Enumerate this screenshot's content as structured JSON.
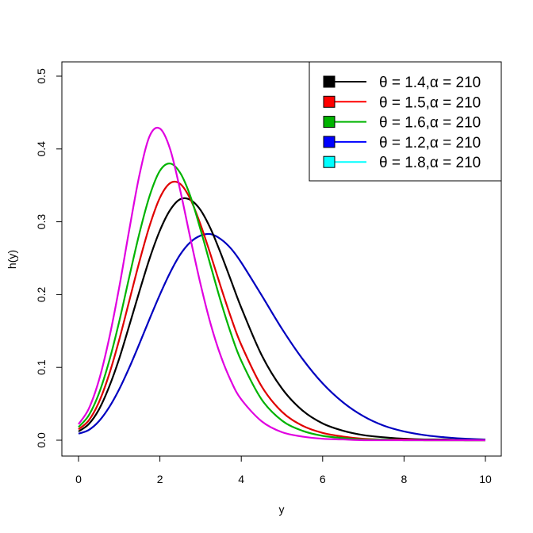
{
  "chart_data": {
    "type": "line",
    "title": "",
    "xlabel": "y",
    "ylabel": "h(y)",
    "xlim": [
      0,
      10
    ],
    "ylim": [
      0,
      0.5
    ],
    "x_ticks": [
      "0",
      "2",
      "4",
      "6",
      "8",
      "10"
    ],
    "y_ticks": [
      "0.0",
      "0.1",
      "0.2",
      "0.3",
      "0.4",
      "0.5"
    ],
    "grid": false,
    "legend_position": "top-right",
    "legend": [
      {
        "label": "θ = 1.4,α = 210",
        "color": "#000000"
      },
      {
        "label": "θ = 1.5,α = 210",
        "color": "#ff0000"
      },
      {
        "label": "θ = 1.6,α = 210",
        "color": "#00b400"
      },
      {
        "label": "θ = 1.2,α = 210",
        "color": "#0000ff"
      },
      {
        "label": "θ = 1.8,α = 210",
        "color": "#00ffff"
      }
    ],
    "series": [
      {
        "color": "#0000c0",
        "x": [
          0,
          0.25,
          0.5,
          0.75,
          1,
          1.25,
          1.5,
          1.75,
          2,
          2.25,
          2.5,
          2.75,
          3,
          3.25,
          3.5,
          3.75,
          4,
          4.5,
          5,
          5.5,
          6,
          6.5,
          7,
          7.5,
          8,
          8.5,
          9,
          9.5,
          10
        ],
        "values": [
          0.009,
          0.014,
          0.026,
          0.045,
          0.07,
          0.1,
          0.133,
          0.167,
          0.2,
          0.23,
          0.255,
          0.272,
          0.281,
          0.283,
          0.276,
          0.263,
          0.244,
          0.199,
          0.153,
          0.112,
          0.078,
          0.052,
          0.033,
          0.02,
          0.012,
          0.007,
          0.004,
          0.002,
          0.001
        ]
      },
      {
        "color": "#000000",
        "x": [
          0,
          0.25,
          0.5,
          0.75,
          1,
          1.25,
          1.5,
          1.75,
          2,
          2.25,
          2.5,
          2.75,
          3,
          3.25,
          3.5,
          3.75,
          4,
          4.5,
          5,
          5.5,
          6,
          6.5,
          7,
          7.5,
          8,
          8.5,
          9,
          9.5,
          10
        ],
        "values": [
          0.012,
          0.022,
          0.042,
          0.073,
          0.112,
          0.158,
          0.205,
          0.25,
          0.288,
          0.316,
          0.331,
          0.33,
          0.316,
          0.29,
          0.256,
          0.219,
          0.182,
          0.117,
          0.071,
          0.041,
          0.023,
          0.013,
          0.007,
          0.004,
          0.002,
          0.001,
          0.001,
          0.0,
          0.0
        ]
      },
      {
        "color": "#e00000",
        "x": [
          0,
          0.25,
          0.5,
          0.75,
          1,
          1.25,
          1.5,
          1.75,
          2,
          2.25,
          2.5,
          2.75,
          3,
          3.25,
          3.5,
          3.75,
          4,
          4.5,
          5,
          5.5,
          6,
          6.5,
          7,
          7.5,
          8,
          8.5,
          9,
          9.5,
          10
        ],
        "values": [
          0.015,
          0.027,
          0.052,
          0.09,
          0.138,
          0.192,
          0.246,
          0.295,
          0.333,
          0.353,
          0.352,
          0.331,
          0.296,
          0.254,
          0.21,
          0.168,
          0.131,
          0.074,
          0.039,
          0.02,
          0.01,
          0.005,
          0.002,
          0.001,
          0.001,
          0.0,
          0.0,
          0.0,
          0.0
        ]
      },
      {
        "color": "#00b400",
        "x": [
          0,
          0.25,
          0.5,
          0.75,
          1,
          1.25,
          1.5,
          1.75,
          2,
          2.25,
          2.5,
          2.75,
          3,
          3.25,
          3.5,
          3.75,
          4,
          4.5,
          5,
          5.5,
          6,
          6.5,
          7,
          7.5,
          8,
          8.5,
          9,
          9.5,
          10
        ],
        "values": [
          0.018,
          0.034,
          0.064,
          0.108,
          0.163,
          0.225,
          0.285,
          0.336,
          0.37,
          0.38,
          0.367,
          0.335,
          0.289,
          0.239,
          0.19,
          0.146,
          0.109,
          0.056,
          0.027,
          0.013,
          0.006,
          0.003,
          0.001,
          0.001,
          0.0,
          0.0,
          0.0,
          0.0,
          0.0
        ]
      },
      {
        "color": "#e000e0",
        "x": [
          0,
          0.25,
          0.5,
          0.75,
          1,
          1.25,
          1.5,
          1.75,
          2,
          2.25,
          2.5,
          2.75,
          3,
          3.25,
          3.5,
          3.75,
          4,
          4.5,
          5,
          5.5,
          6,
          6.5,
          7,
          7.5,
          8,
          8.5,
          9,
          9.5,
          10
        ],
        "values": [
          0.022,
          0.043,
          0.082,
          0.139,
          0.21,
          0.29,
          0.365,
          0.418,
          0.428,
          0.4,
          0.343,
          0.277,
          0.214,
          0.159,
          0.115,
          0.081,
          0.056,
          0.026,
          0.011,
          0.005,
          0.002,
          0.001,
          0.0,
          0.0,
          0.0,
          0.0,
          0.0,
          0.0,
          0.0
        ]
      }
    ]
  }
}
